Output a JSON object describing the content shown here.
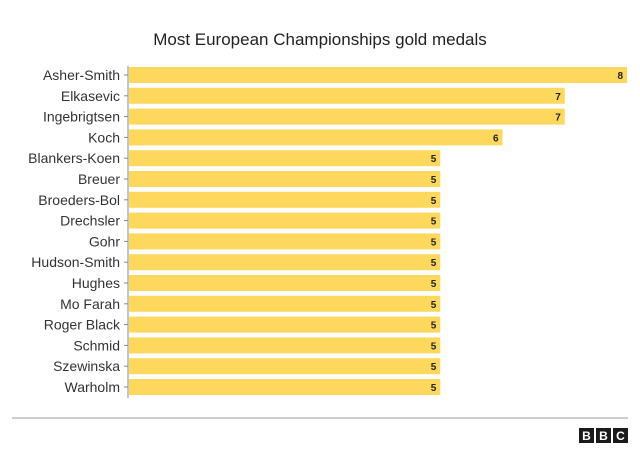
{
  "chart_data": {
    "type": "bar",
    "orientation": "horizontal",
    "title": "Most European Championships gold medals",
    "categories": [
      "Asher-Smith",
      "Elkasevic",
      "Ingebrigtsen",
      "Koch",
      "Blankers-Koen",
      "Breuer",
      "Broeders-Bol",
      "Drechsler",
      "Gohr",
      "Hudson-Smith",
      "Hughes",
      "Mo Farah",
      "Roger Black",
      "Schmid",
      "Szewinska",
      "Warholm"
    ],
    "values": [
      8,
      7,
      7,
      6,
      5,
      5,
      5,
      5,
      5,
      5,
      5,
      5,
      5,
      5,
      5,
      5
    ],
    "xlim": [
      0,
      8
    ],
    "grid": false,
    "bar_color": "#fdd85d",
    "value_labels": true
  },
  "branding": {
    "logo_letters": [
      "B",
      "B",
      "C"
    ],
    "logo_color": "#1a1a1a"
  }
}
